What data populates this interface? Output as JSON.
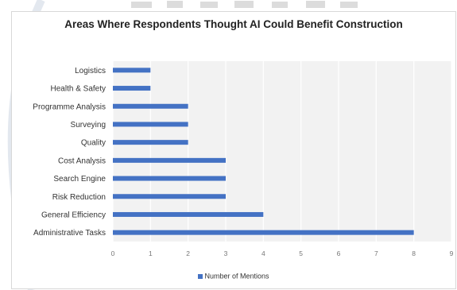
{
  "chart_data": {
    "type": "bar",
    "orientation": "horizontal",
    "title": "Areas Where Respondents Thought AI Could Benefit Construction",
    "categories": [
      "Administrative Tasks",
      "General Efficiency",
      "Risk Reduction",
      "Search Engine",
      "Cost Analysis",
      "Quality",
      "Surveying",
      "Programme Analysis",
      "Health & Safety",
      "Logistics"
    ],
    "series": [
      {
        "name": "Number of Mentions",
        "values": [
          8,
          4,
          3,
          3,
          3,
          2,
          2,
          2,
          1,
          1
        ],
        "color": "#4472c4"
      }
    ],
    "xlim": [
      0,
      9
    ],
    "xticks": [
      "0",
      "1",
      "2",
      "3",
      "4",
      "5",
      "6",
      "7",
      "8",
      "9"
    ],
    "xlabel": "",
    "ylabel": "",
    "grid": true,
    "legend": "bottom",
    "plot_background": "#f2f2f2",
    "grid_color": "#ffffff"
  }
}
